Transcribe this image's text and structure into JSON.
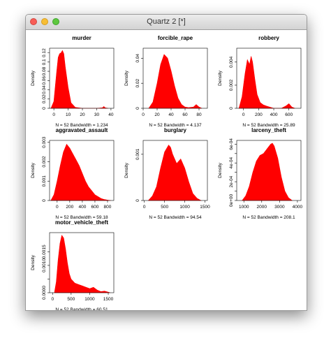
{
  "window": {
    "title": "Quartz 2 [*]"
  },
  "colors": {
    "fill": "#ff0000",
    "axis": "#000000"
  },
  "chart_data": [
    {
      "type": "area",
      "title": "murder",
      "ylabel": "Density",
      "sub": "N = 52   Bandwidth = 1.234",
      "xticks": [
        0,
        10,
        20,
        30,
        40
      ],
      "xlim": [
        -3,
        42
      ],
      "yticks": [
        0,
        0.02,
        0.04,
        0.06,
        0.08,
        0.1,
        0.12
      ],
      "ylim": [
        0,
        0.13
      ],
      "x": [
        -2,
        0,
        2,
        3,
        4,
        5,
        6,
        7,
        8,
        10,
        12,
        15,
        20,
        30,
        34,
        35,
        36,
        38
      ],
      "y": [
        0,
        0.015,
        0.08,
        0.11,
        0.118,
        0.12,
        0.125,
        0.118,
        0.09,
        0.045,
        0.012,
        0.002,
        0,
        0,
        0.001,
        0.004,
        0.001,
        0
      ]
    },
    {
      "type": "area",
      "title": "forcible_rape",
      "ylabel": "Density",
      "sub": "N = 52   Bandwidth = 4.137",
      "xticks": [
        0,
        20,
        40,
        60,
        80
      ],
      "xlim": [
        0,
        92
      ],
      "yticks": [
        0,
        0.02,
        0.04
      ],
      "ylim": [
        0,
        0.048
      ],
      "x": [
        8,
        14,
        20,
        25,
        30,
        35,
        40,
        45,
        50,
        55,
        60,
        65,
        72,
        76,
        80,
        84
      ],
      "y": [
        0,
        0.005,
        0.02,
        0.035,
        0.043,
        0.04,
        0.03,
        0.018,
        0.008,
        0.003,
        0.001,
        0.0005,
        0.001,
        0.003,
        0.001,
        0
      ]
    },
    {
      "type": "area",
      "title": "robbery",
      "ylabel": "Density",
      "sub": "N = 52   Bandwidth = 25.89",
      "xticks": [
        0,
        200,
        400,
        600
      ],
      "xlim": [
        -90,
        760
      ],
      "yticks": [
        0,
        0.002,
        0.004
      ],
      "ylim": [
        0,
        0.0052
      ],
      "x": [
        -60,
        -20,
        20,
        50,
        80,
        100,
        120,
        150,
        180,
        220,
        260,
        300,
        400,
        500,
        560,
        600,
        640,
        680
      ],
      "y": [
        0,
        0.001,
        0.003,
        0.0042,
        0.0038,
        0.0045,
        0.004,
        0.0025,
        0.0012,
        0.0005,
        0.0003,
        0.0002,
        0,
        0,
        0.0002,
        0.0004,
        0.0001,
        0
      ]
    },
    {
      "type": "area",
      "title": "aggravated_assault",
      "ylabel": "Density",
      "sub": "N = 52   Bandwidth = 59.18",
      "xticks": [
        0,
        200,
        400,
        600,
        800
      ],
      "xlim": [
        -120,
        900
      ],
      "yticks": [
        0,
        0.001,
        0.002,
        0.003
      ],
      "ylim": [
        0,
        0.0031
      ],
      "x": [
        -100,
        -50,
        0,
        50,
        100,
        150,
        200,
        250,
        300,
        350,
        400,
        450,
        500,
        550,
        600,
        650,
        700,
        750,
        800,
        850
      ],
      "y": [
        0,
        0.0003,
        0.001,
        0.0018,
        0.0025,
        0.0029,
        0.0027,
        0.0024,
        0.0021,
        0.0018,
        0.0014,
        0.001,
        0.0007,
        0.0005,
        0.0003,
        0.0002,
        0.0001,
        5e-05,
        2e-05,
        0
      ]
    },
    {
      "type": "area",
      "title": "burglary",
      "ylabel": "Density",
      "sub": "N = 52   Bandwidth = 94.54",
      "xticks": [
        0,
        500,
        1000,
        1500
      ],
      "xlim": [
        -30,
        1560
      ],
      "yticks": [
        0,
        0.001
      ],
      "ylim": [
        0,
        0.0013
      ],
      "x": [
        100,
        200,
        300,
        400,
        500,
        600,
        650,
        700,
        800,
        850,
        900,
        1000,
        1100,
        1200,
        1300,
        1400
      ],
      "y": [
        0,
        0.0001,
        0.0003,
        0.0007,
        0.00105,
        0.0012,
        0.00115,
        0.001,
        0.0008,
        0.00085,
        0.0009,
        0.0007,
        0.0004,
        0.00015,
        5e-05,
        0
      ]
    },
    {
      "type": "area",
      "title": "larceny_theft",
      "ylabel": "Density",
      "sub": "N = 52   Bandwidth = 208.1",
      "xticks": [
        1000,
        2000,
        3000,
        4000
      ],
      "xlim": [
        600,
        4200
      ],
      "yticks": [
        0,
        0.0001,
        0.0002,
        0.0003,
        0.0004,
        0.0005,
        0.0006
      ],
      "yticklabels": [
        "0e+00",
        "",
        "2e-04",
        "",
        "4e-04",
        "",
        "6e-04"
      ],
      "ylim": [
        0,
        0.00064
      ],
      "x": [
        900,
        1100,
        1300,
        1500,
        1700,
        1900,
        2100,
        2300,
        2500,
        2600,
        2700,
        2900,
        3100,
        3300,
        3500,
        3700
      ],
      "y": [
        0,
        5e-05,
        0.00015,
        0.0003,
        0.00042,
        0.00048,
        0.0005,
        0.00055,
        0.0006,
        0.00061,
        0.00058,
        0.00045,
        0.00025,
        0.0001,
        3e-05,
        0
      ]
    },
    {
      "type": "area",
      "title": "motor_vehicle_theft",
      "ylabel": "Density",
      "sub": "N = 52   Bandwidth = 60.51",
      "xticks": [
        0,
        500,
        1000,
        1500
      ],
      "xlim": [
        -80,
        1650
      ],
      "yticks": [
        0,
        0.0005,
        0.001,
        0.0015
      ],
      "yticklabels": [
        "0.0000",
        "",
        "0.0010",
        "0.0015"
      ],
      "ylim": [
        0,
        0.0022
      ],
      "x": [
        50,
        100,
        150,
        200,
        250,
        300,
        350,
        400,
        450,
        500,
        600,
        700,
        800,
        900,
        1000,
        1100,
        1200,
        1300,
        1400,
        1500,
        1550
      ],
      "y": [
        0,
        0.0004,
        0.0012,
        0.0018,
        0.0021,
        0.002,
        0.0016,
        0.0011,
        0.0007,
        0.0005,
        0.00035,
        0.0003,
        0.00025,
        0.0002,
        0.00015,
        0.0002,
        0.0001,
        4e-05,
        6e-05,
        2e-05,
        0
      ]
    }
  ]
}
